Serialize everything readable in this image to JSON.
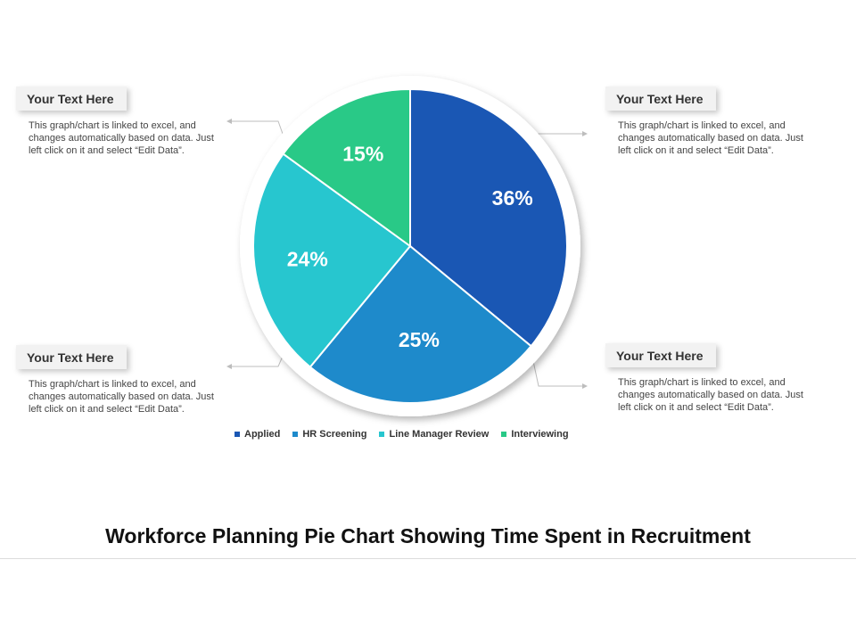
{
  "chart_data": {
    "type": "pie",
    "title": "Workforce Planning Pie Chart Showing Time Spent in Recruitment",
    "categories": [
      "Applied",
      "HR Screening",
      "Line Manager Review",
      "Interviewing"
    ],
    "values": [
      36,
      25,
      24,
      15
    ],
    "value_labels": [
      "36%",
      "25%",
      "24%",
      "15%"
    ],
    "colors": [
      "#1a57b4",
      "#1e8acb",
      "#27c6cf",
      "#29c987"
    ],
    "legend_position": "bottom"
  },
  "callouts": {
    "top_left": {
      "heading": "Your Text Here",
      "body": "This graph/chart is linked to excel, and changes automatically based on data. Just left click on it and select “Edit Data”."
    },
    "bottom_left": {
      "heading": "Your Text Here",
      "body": "This graph/chart is linked to excel, and changes automatically based on data. Just left click on it and select “Edit Data”."
    },
    "top_right": {
      "heading": "Your Text Here",
      "body": "This graph/chart is linked to excel, and changes automatically based on data. Just left click on it and select “Edit Data”."
    },
    "bottom_right": {
      "heading": "Your Text Here",
      "body": "This graph/chart is linked to excel, and changes automatically based on data. Just left click on it and select “Edit Data”."
    }
  }
}
